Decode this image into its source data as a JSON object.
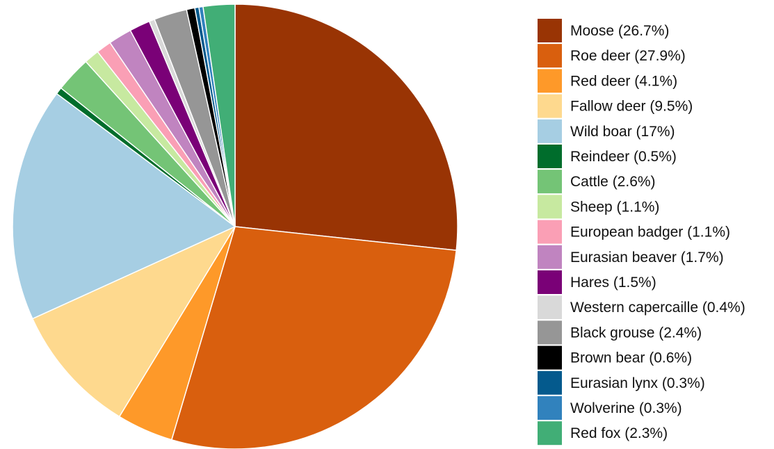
{
  "chart_data": {
    "type": "pie",
    "start_angle": "12 o'clock",
    "direction": "clockwise",
    "legend_position": "right",
    "slices": [
      {
        "label": "Moose (26.7%)",
        "name": "Moose",
        "value": 26.7,
        "color": "#993404"
      },
      {
        "label": "Roe deer (27.9%)",
        "name": "Roe deer",
        "value": 27.9,
        "color": "#d95f0e"
      },
      {
        "label": "Red deer (4.1%)",
        "name": "Red deer",
        "value": 4.1,
        "color": "#fe9929"
      },
      {
        "label": "Fallow deer (9.5%)",
        "name": "Fallow deer",
        "value": 9.5,
        "color": "#fed98e"
      },
      {
        "label": "Wild boar (17%)",
        "name": "Wild boar",
        "value": 17,
        "color": "#a6cee3"
      },
      {
        "label": "Reindeer (0.5%)",
        "name": "Reindeer",
        "value": 0.5,
        "color": "#006d2c"
      },
      {
        "label": "Cattle (2.6%)",
        "name": "Cattle",
        "value": 2.6,
        "color": "#74c476"
      },
      {
        "label": "Sheep (1.1%)",
        "name": "Sheep",
        "value": 1.1,
        "color": "#c7e9a0"
      },
      {
        "label": "European badger (1.1%)",
        "name": "European badger",
        "value": 1.1,
        "color": "#fa9fb5"
      },
      {
        "label": "Eurasian beaver (1.7%)",
        "name": "Eurasian beaver",
        "value": 1.7,
        "color": "#c084c0"
      },
      {
        "label": "Hares (1.5%)",
        "name": "Hares",
        "value": 1.5,
        "color": "#7a0177"
      },
      {
        "label": "Western capercaille (0.4%)",
        "name": "Western capercaille",
        "value": 0.4,
        "color": "#d9d9d9"
      },
      {
        "label": "Black grouse (2.4%)",
        "name": "Black grouse",
        "value": 2.4,
        "color": "#969696"
      },
      {
        "label": "Brown bear (0.6%)",
        "name": "Brown bear",
        "value": 0.6,
        "color": "#000000"
      },
      {
        "label": "Eurasian lynx (0.3%)",
        "name": "Eurasian lynx",
        "value": 0.3,
        "color": "#045a8d"
      },
      {
        "label": "Wolverine (0.3%)",
        "name": "Wolverine",
        "value": 0.3,
        "color": "#3182bd"
      },
      {
        "label": "Red fox (2.3%)",
        "name": "Red fox",
        "value": 2.3,
        "color": "#41ae76"
      }
    ]
  }
}
